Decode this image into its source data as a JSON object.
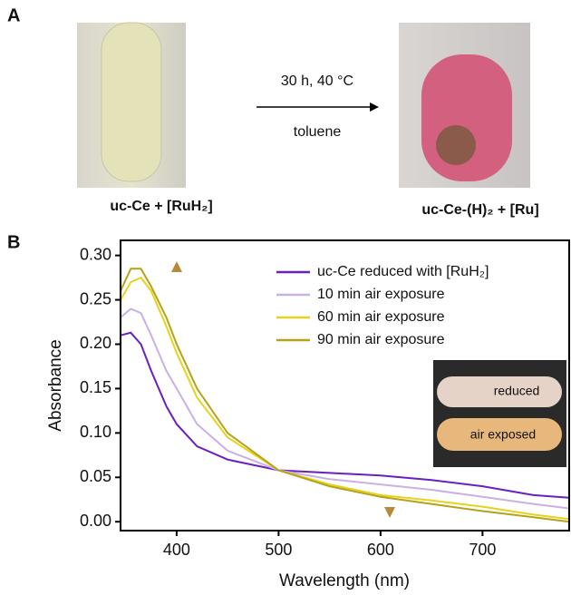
{
  "panel_a": {
    "label": "A",
    "left_caption": "uc-Ce + [RuH₂]",
    "condition": "30 h, 40 °C",
    "solvent": "toluene",
    "right_caption": "uc-Ce-(H)₂ + [Ru]"
  },
  "chart_data": {
    "type": "line",
    "panel_label": "B",
    "x_label": "Wavelength (nm)",
    "y_label": "Absorbance",
    "x": [
      345,
      355,
      365,
      375,
      390,
      400,
      420,
      450,
      500,
      550,
      600,
      650,
      700,
      750,
      785
    ],
    "series": [
      {
        "name": "uc-Ce reduced with [RuH₂]",
        "color": "#6a1fc0",
        "values": [
          0.21,
          0.213,
          0.2,
          0.17,
          0.13,
          0.11,
          0.085,
          0.07,
          0.058,
          0.055,
          0.052,
          0.047,
          0.04,
          0.03,
          0.027
        ]
      },
      {
        "name": "10 min air exposure",
        "color": "#c9b0e6",
        "values": [
          0.23,
          0.24,
          0.235,
          0.21,
          0.17,
          0.15,
          0.11,
          0.08,
          0.058,
          0.048,
          0.042,
          0.036,
          0.028,
          0.02,
          0.015
        ]
      },
      {
        "name": "60 min air exposure",
        "color": "#e8d21e",
        "values": [
          0.25,
          0.27,
          0.275,
          0.26,
          0.22,
          0.19,
          0.14,
          0.095,
          0.058,
          0.042,
          0.03,
          0.024,
          0.017,
          0.008,
          0.003
        ]
      },
      {
        "name": "90 min air exposure",
        "color": "#b5a31a",
        "values": [
          0.26,
          0.285,
          0.285,
          0.265,
          0.23,
          0.2,
          0.15,
          0.1,
          0.058,
          0.04,
          0.028,
          0.02,
          0.012,
          0.005,
          0.0
        ]
      }
    ],
    "xlim": [
      345,
      785
    ],
    "xticks": [
      400,
      500,
      600,
      700
    ],
    "ylim": [
      -0.01,
      0.317
    ],
    "yticks": [
      {
        "value": 0,
        "label": "0.00"
      },
      {
        "value": 0.05,
        "label": "0.05"
      },
      {
        "value": 0.1,
        "label": "0.10"
      },
      {
        "value": 0.15,
        "label": "0.15"
      },
      {
        "value": 0.2,
        "label": "0.20"
      },
      {
        "value": 0.25,
        "label": "0.25"
      },
      {
        "value": 0.3,
        "label": "0.30"
      }
    ],
    "inset_labels": [
      "reduced",
      "air exposed"
    ]
  }
}
